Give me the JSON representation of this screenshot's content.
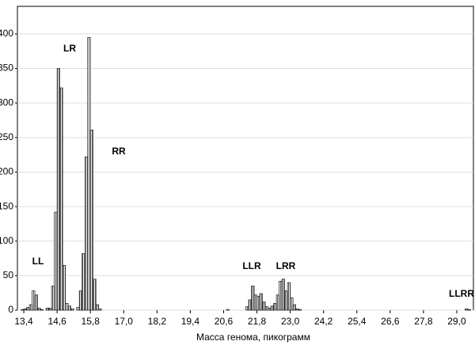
{
  "chart_data": {
    "type": "histogram",
    "xlabel": "Масса генома, пикограмм",
    "bins": [
      13.3,
      13.4,
      13.5,
      13.6,
      13.7,
      13.8,
      13.9,
      14.0,
      14.1,
      14.2,
      14.3,
      14.4,
      14.5,
      14.6,
      14.7,
      14.8,
      14.9,
      15.0,
      15.1,
      15.2,
      15.3,
      15.4,
      15.5,
      15.6,
      15.7,
      15.8,
      15.9,
      16.0,
      16.1,
      16.2,
      16.3,
      16.4,
      16.5,
      16.6,
      16.7,
      16.8,
      16.9,
      17.0,
      17.1,
      17.2,
      17.3,
      17.4,
      17.5,
      17.6,
      17.7,
      17.8,
      17.9,
      18.0,
      18.1,
      18.2,
      18.3,
      18.4,
      18.5,
      18.6,
      18.7,
      18.8,
      18.9,
      19.0,
      19.1,
      19.2,
      19.3,
      19.4,
      19.5,
      19.6,
      19.7,
      19.8,
      19.9,
      20.0,
      20.1,
      20.2,
      20.3,
      20.4,
      20.5,
      20.6,
      20.7,
      20.8,
      20.9,
      21.0,
      21.1,
      21.2,
      21.3,
      21.4,
      21.5,
      21.6,
      21.7,
      21.8,
      21.9,
      22.0,
      22.1,
      22.2,
      22.3,
      22.4,
      22.5,
      22.6,
      22.7,
      22.8,
      22.9,
      23.0,
      23.1,
      23.2,
      23.3,
      23.4,
      23.5,
      23.6,
      23.7,
      23.8,
      23.9,
      24.0,
      24.1,
      24.2,
      24.3,
      24.4,
      24.5,
      24.6,
      24.7,
      24.8,
      24.9,
      25.0,
      25.1,
      25.2,
      25.3,
      25.4,
      25.5,
      25.6,
      25.7,
      25.8,
      25.9,
      26.0,
      26.1,
      26.2,
      26.3,
      26.4,
      26.5,
      26.6,
      26.7,
      26.8,
      26.9,
      27.0,
      27.1,
      27.2,
      27.3,
      27.4,
      27.5,
      27.6,
      27.7,
      27.8,
      27.9,
      28.0,
      28.1,
      28.2,
      28.3,
      28.4,
      28.5,
      28.6,
      28.7,
      28.8,
      28.9,
      29.0,
      29.1,
      29.2,
      29.3,
      29.4,
      29.5
    ],
    "values": [
      1,
      2,
      4,
      8,
      28,
      22,
      3,
      1,
      0,
      3,
      3,
      35,
      142,
      350,
      322,
      65,
      10,
      6,
      2,
      0,
      4,
      28,
      82,
      222,
      395,
      261,
      45,
      8,
      2,
      0,
      0,
      0,
      0,
      0,
      0,
      0,
      0,
      0,
      0,
      0,
      0,
      0,
      0,
      0,
      0,
      0,
      0,
      0,
      0,
      0,
      0,
      0,
      0,
      0,
      0,
      0,
      0,
      0,
      0,
      0,
      0,
      0,
      0,
      0,
      0,
      0,
      0,
      0,
      0,
      0,
      0,
      0,
      0,
      0,
      1,
      0,
      0,
      0,
      0,
      0,
      0,
      5,
      15,
      35,
      22,
      20,
      24,
      12,
      5,
      3,
      6,
      10,
      22,
      42,
      45,
      28,
      40,
      18,
      8,
      2,
      1,
      0,
      0,
      0,
      0,
      0,
      0,
      0,
      0,
      0,
      0,
      0,
      0,
      0,
      0,
      0,
      0,
      0,
      0,
      0,
      0,
      0,
      0,
      0,
      0,
      0,
      0,
      0,
      0,
      0,
      0,
      0,
      0,
      0,
      0,
      0,
      0,
      0,
      0,
      0,
      0,
      0,
      0,
      0,
      0,
      0,
      0,
      0,
      0,
      0,
      0,
      0,
      0,
      0,
      0,
      0,
      0,
      0,
      0,
      0,
      2,
      1
    ],
    "color": "#000000",
    "xlim": [
      13.17,
      29.6
    ],
    "xticks": [
      {
        "value": 13.4,
        "label": "13,4"
      },
      {
        "value": 14.6,
        "label": "14,6"
      },
      {
        "value": 15.8,
        "label": "15,8"
      },
      {
        "value": 17.0,
        "label": "17,0"
      },
      {
        "value": 18.2,
        "label": "18,2"
      },
      {
        "value": 19.4,
        "label": "19,4"
      },
      {
        "value": 20.6,
        "label": "20,6"
      },
      {
        "value": 21.8,
        "label": "21,8"
      },
      {
        "value": 23.0,
        "label": "23,0"
      },
      {
        "value": 24.2,
        "label": "24,2"
      },
      {
        "value": 25.4,
        "label": "25,4"
      },
      {
        "value": 26.6,
        "label": "26,6"
      },
      {
        "value": 27.8,
        "label": "27,8"
      },
      {
        "value": 29.0,
        "label": "29,0"
      }
    ],
    "ylim": [
      0,
      440
    ],
    "yticks": [
      0,
      50,
      100,
      150,
      200,
      250,
      300,
      350,
      400
    ],
    "grid": true,
    "annotations": [
      "LL",
      "LR",
      "RR",
      "LLR",
      "LRR",
      "LLRR"
    ]
  }
}
